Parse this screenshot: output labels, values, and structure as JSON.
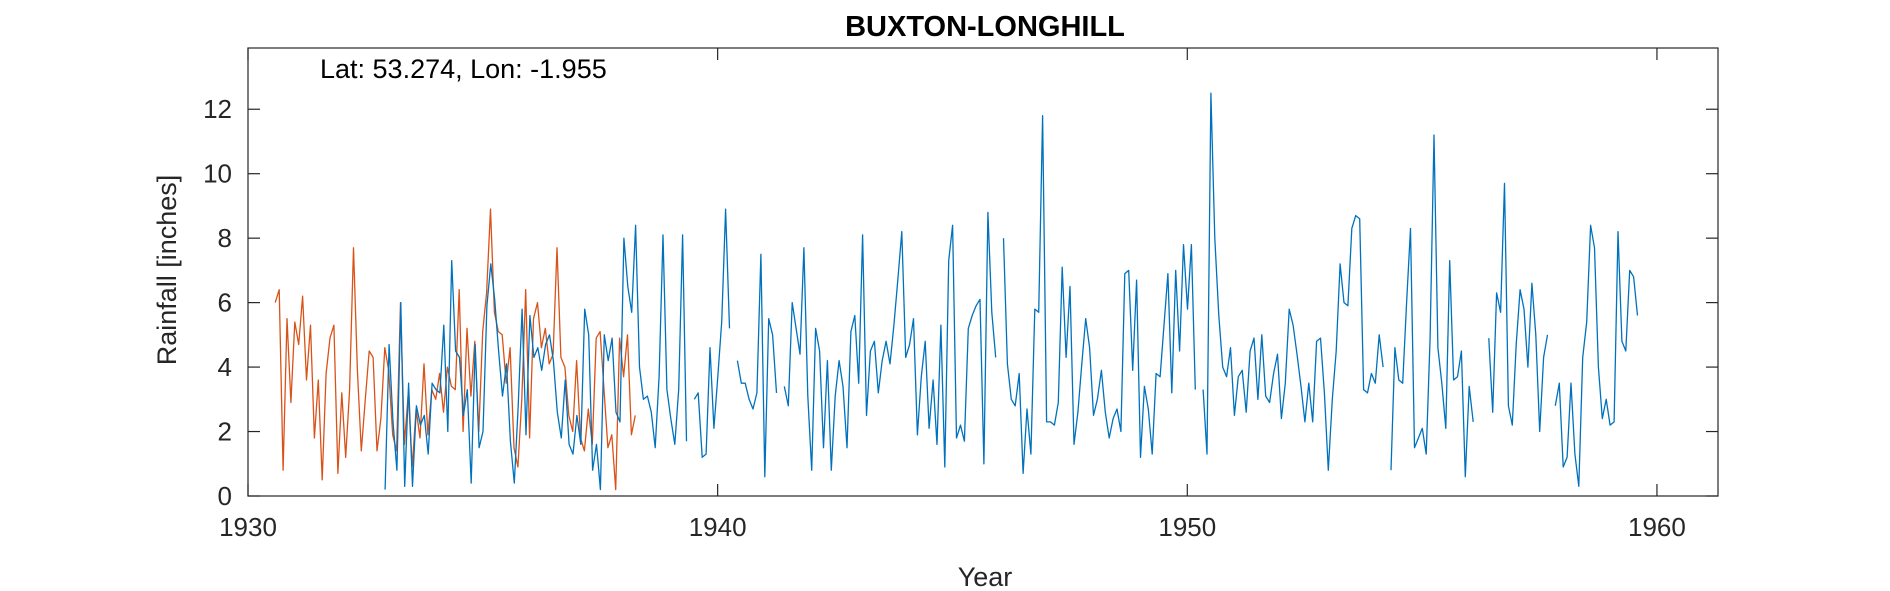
{
  "chart_data": {
    "type": "line",
    "title": "BUXTON-LONGHILL",
    "annotation": "Lat: 53.274, Lon: -1.955",
    "xlabel": "Year",
    "ylabel": "Rainfall [inches]",
    "xlim": [
      1930,
      1961.3
    ],
    "ylim": [
      0,
      13.9
    ],
    "xticks": [
      1930,
      1940,
      1950,
      1960
    ],
    "yticks": [
      0,
      2,
      4,
      6,
      8,
      10,
      12
    ],
    "grid": false,
    "colors": {
      "blue": "#0072BD",
      "orange": "#D95319",
      "axis": "#262626"
    },
    "series": [
      {
        "key": "orange",
        "color": "#D95319",
        "start": 1930.58,
        "values": [
          6.0,
          6.4,
          0.8,
          5.5,
          2.9,
          5.4,
          4.7,
          6.2,
          3.6,
          5.3,
          1.8,
          3.6,
          0.5,
          3.8,
          4.9,
          5.3,
          0.7,
          3.2,
          1.2,
          3.3,
          7.7,
          3.9,
          1.4,
          3.0,
          4.5,
          4.3,
          1.4,
          2.4,
          4.6,
          3.9,
          1.9,
          1.4,
          6.0,
          1.6,
          3.2,
          0.9,
          2.7,
          1.8,
          4.1,
          1.9,
          3.3,
          3.0,
          3.8,
          2.6,
          4.0,
          3.4,
          3.3,
          6.4,
          2.0,
          5.2,
          3.1,
          4.8,
          2.0,
          5.1,
          6.3,
          8.9,
          5.7,
          5.1,
          5.0,
          3.5,
          4.6,
          1.5,
          0.9,
          3.0,
          6.4,
          1.8,
          5.5,
          6.0,
          4.6,
          5.2,
          4.1,
          4.4,
          7.7,
          4.3,
          4.0,
          2.5,
          2.0,
          4.2,
          1.8,
          1.4,
          2.7,
          1.6,
          4.9,
          5.1,
          3.3,
          1.5,
          1.9,
          0.2,
          4.9,
          3.7,
          5.0,
          1.9,
          2.5
        ]
      },
      {
        "key": "blue",
        "color": "#0072BD",
        "start": 1932.92,
        "values": [
          0.2,
          4.7,
          2.3,
          0.8,
          6.0,
          0.3,
          3.5,
          0.3,
          2.8,
          2.2,
          2.5,
          1.3,
          3.5,
          3.3,
          3.2,
          5.3,
          2.0,
          7.3,
          4.5,
          4.3,
          2.5,
          3.3,
          0.4,
          4.7,
          1.5,
          2.0,
          5.9,
          7.2,
          6.1,
          4.5,
          3.1,
          4.1,
          1.7,
          0.4,
          2.8,
          5.8,
          1.9,
          5.6,
          4.3,
          4.6,
          3.9,
          4.7,
          5.0,
          4.2,
          2.6,
          1.8,
          3.6,
          1.6,
          1.3,
          2.5,
          1.6,
          5.8,
          5.0,
          0.8,
          1.6,
          0.2,
          5.0,
          4.2,
          4.9,
          2.6,
          2.3,
          8.0,
          6.5,
          5.7,
          8.4,
          4.0,
          3.0,
          3.1,
          2.6,
          1.5,
          3.7,
          8.1,
          3.3,
          2.4,
          1.6,
          3.3,
          8.1,
          1.7,
          null,
          3.0,
          3.2,
          1.2,
          1.3,
          4.6,
          2.1,
          3.7,
          5.4,
          8.9,
          5.2,
          null,
          4.2,
          3.5,
          3.5,
          3.0,
          2.7,
          3.2,
          7.5,
          0.6,
          5.5,
          5.0,
          3.2,
          null,
          3.4,
          2.8,
          6.0,
          5.2,
          4.4,
          7.7,
          3.1,
          0.8,
          5.2,
          4.5,
          1.5,
          4.2,
          0.8,
          3.1,
          4.2,
          3.4,
          1.5,
          5.1,
          5.6,
          3.5,
          8.1,
          2.5,
          4.5,
          4.8,
          3.2,
          4.2,
          4.8,
          4.1,
          5.3,
          6.7,
          8.2,
          4.3,
          4.7,
          5.5,
          1.9,
          3.7,
          4.8,
          2.1,
          3.6,
          1.6,
          5.3,
          0.9,
          7.3,
          8.4,
          1.8,
          2.2,
          1.7,
          5.2,
          5.6,
          5.9,
          6.1,
          1.0,
          8.8,
          5.7,
          4.3,
          null,
          8.0,
          4.1,
          3.0,
          2.8,
          3.8,
          0.7,
          2.7,
          1.3,
          5.8,
          5.7,
          11.8,
          2.3,
          2.3,
          2.2,
          2.9,
          7.1,
          4.3,
          6.5,
          1.6,
          2.6,
          4.1,
          5.5,
          4.6,
          2.5,
          3.0,
          3.9,
          2.6,
          1.8,
          2.4,
          2.7,
          2.0,
          6.9,
          7.0,
          3.9,
          6.7,
          1.2,
          3.4,
          2.7,
          1.3,
          3.8,
          3.7,
          5.3,
          6.9,
          3.2,
          7.0,
          4.5,
          7.8,
          5.8,
          7.8,
          3.3,
          null,
          3.3,
          1.3,
          12.5,
          8.0,
          5.6,
          4.0,
          3.7,
          4.6,
          2.5,
          3.7,
          3.9,
          2.6,
          4.5,
          4.9,
          3.0,
          5.0,
          3.1,
          2.9,
          3.8,
          4.4,
          2.4,
          3.5,
          5.8,
          5.3,
          4.4,
          3.4,
          2.3,
          3.5,
          2.3,
          4.8,
          4.9,
          3.2,
          0.8,
          3.0,
          4.5,
          7.2,
          6.0,
          5.9,
          8.3,
          8.7,
          8.6,
          3.3,
          3.2,
          3.8,
          3.5,
          5.0,
          4.0,
          null,
          0.8,
          4.6,
          3.6,
          3.5,
          6.0,
          8.3,
          1.5,
          1.8,
          2.1,
          1.3,
          4.9,
          11.2,
          4.6,
          3.5,
          2.1,
          7.3,
          3.6,
          3.7,
          4.5,
          0.6,
          3.4,
          2.3,
          null,
          null,
          null,
          4.9,
          2.6,
          6.3,
          5.7,
          9.7,
          2.8,
          2.2,
          4.7,
          6.4,
          5.8,
          4.0,
          6.6,
          5.0,
          2.0,
          4.3,
          5.0,
          null,
          2.8,
          3.5,
          0.9,
          1.2,
          3.5,
          1.3,
          0.3,
          4.3,
          5.4,
          8.4,
          7.7,
          4.0,
          2.4,
          3.0,
          2.2,
          2.3,
          8.2,
          4.8,
          4.5,
          7.0,
          6.8,
          5.6
        ]
      }
    ]
  }
}
